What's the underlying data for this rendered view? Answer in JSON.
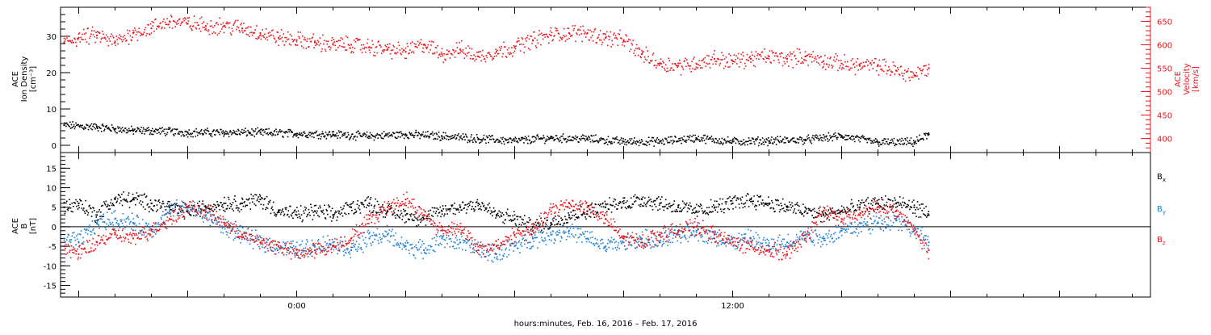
{
  "xlabel": "hours:minutes, Feb. 16, 2016 – Feb. 17, 2016",
  "x_tick_labels": [
    "0:00",
    "12:00"
  ],
  "chart_data": [
    {
      "type": "scatter",
      "panel": "top",
      "left_axis": {
        "label_lines": [
          "ACE",
          "Ion Density",
          "[cm⁻³]"
        ],
        "ylim": [
          -2,
          38
        ],
        "ticks": [
          0,
          10,
          20,
          30
        ],
        "color": "#000000"
      },
      "right_axis": {
        "label_lines": [
          "ACE",
          "Velocity",
          "[km/s]"
        ],
        "ylim": [
          370,
          680
        ],
        "ticks": [
          400,
          450,
          500,
          550,
          600,
          650
        ],
        "color": "#e8161b"
      },
      "xlim_hours": [
        -6.5,
        23.5
      ],
      "series": [
        {
          "axis": "left",
          "color": "#000000",
          "x": [
            -6.4,
            -5.5,
            -5.0,
            -4.5,
            -4.0,
            -3.0,
            -2.0,
            -1.0,
            0.0,
            1.0,
            2.0,
            3.0,
            4.0,
            5.0,
            6.0,
            7.0,
            8.0,
            9.0,
            10.0,
            11.0,
            12.0,
            13.0,
            14.0,
            15.0,
            16.0,
            17.0,
            17.4
          ],
          "y": [
            5.5,
            5.0,
            4.5,
            4.0,
            4.0,
            3.5,
            3.5,
            3.5,
            3.2,
            3.0,
            2.5,
            3.0,
            2.5,
            1.8,
            1.2,
            2.0,
            1.8,
            1.0,
            1.0,
            2.0,
            1.0,
            1.2,
            1.5,
            2.5,
            0.8,
            0.8,
            3.0
          ]
        },
        {
          "axis": "right",
          "color": "#e8161b",
          "x": [
            -6.4,
            -6.0,
            -5.5,
            -5.0,
            -4.5,
            -4.0,
            -3.5,
            -3.0,
            -2.5,
            -2.0,
            -1.5,
            -1.0,
            -0.5,
            0.0,
            0.5,
            1.0,
            1.5,
            2.0,
            2.5,
            3.0,
            3.5,
            4.0,
            4.5,
            5.0,
            5.5,
            6.0,
            6.5,
            7.0,
            7.5,
            8.0,
            8.5,
            9.0,
            9.5,
            10.0,
            10.5,
            11.0,
            11.5,
            12.0,
            12.5,
            13.0,
            13.5,
            14.0,
            14.5,
            15.0,
            15.5,
            16.0,
            16.5,
            17.0,
            17.4
          ],
          "y": [
            605,
            615,
            620,
            605,
            625,
            635,
            650,
            645,
            640,
            640,
            635,
            625,
            615,
            610,
            605,
            600,
            600,
            595,
            590,
            585,
            600,
            580,
            590,
            575,
            585,
            595,
            610,
            620,
            625,
            625,
            615,
            610,
            580,
            560,
            555,
            560,
            570,
            565,
            570,
            575,
            570,
            575,
            565,
            560,
            555,
            555,
            545,
            535,
            550
          ]
        }
      ]
    },
    {
      "type": "scatter",
      "panel": "bottom",
      "left_axis": {
        "label_lines": [
          "ACE",
          "B",
          "[nT]"
        ],
        "ylim": [
          -18,
          19
        ],
        "ticks": [
          -15,
          -10,
          -5,
          0,
          5,
          10,
          15
        ],
        "color": "#000000"
      },
      "xlim_hours": [
        -6.5,
        23.5
      ],
      "zero_line": true,
      "legend_placement": "right",
      "series": [
        {
          "name": "B",
          "subscript": "x",
          "color": "#000000",
          "x": [
            -6.4,
            -6.0,
            -5.5,
            -5.0,
            -4.5,
            -4.0,
            -3.5,
            -3.0,
            -2.5,
            -2.0,
            -1.5,
            -1.0,
            -0.5,
            0.0,
            0.5,
            1.0,
            1.5,
            2.0,
            2.5,
            3.0,
            3.5,
            4.0,
            4.5,
            5.0,
            5.5,
            6.0,
            6.5,
            7.0,
            7.5,
            8.0,
            8.5,
            9.0,
            9.5,
            10.0,
            10.5,
            11.0,
            11.5,
            12.0,
            12.5,
            13.0,
            13.5,
            14.0,
            14.5,
            15.0,
            15.5,
            16.0,
            16.5,
            17.0,
            17.4
          ],
          "y": [
            5,
            6,
            3,
            7,
            7,
            6,
            5,
            4,
            5,
            6,
            6,
            7,
            4,
            3,
            4,
            3,
            5,
            6,
            4,
            3,
            2,
            4,
            5,
            6,
            3,
            2,
            0,
            1,
            3,
            4,
            5,
            6,
            7,
            6,
            5,
            4,
            5,
            6,
            7,
            6,
            5,
            4,
            3,
            4,
            5,
            6,
            6,
            5,
            3
          ]
        },
        {
          "name": "B",
          "subscript": "y",
          "color": "#1b7fd6",
          "x": [
            -6.4,
            -6.0,
            -5.5,
            -5.0,
            -4.5,
            -4.0,
            -3.5,
            -3.0,
            -2.5,
            -2.0,
            -1.5,
            -1.0,
            -0.5,
            0.0,
            0.5,
            1.0,
            1.5,
            2.0,
            2.5,
            3.0,
            3.5,
            4.0,
            4.5,
            5.0,
            5.5,
            6.0,
            6.5,
            7.0,
            7.5,
            8.0,
            8.5,
            9.0,
            9.5,
            10.0,
            10.5,
            11.0,
            11.5,
            12.0,
            12.5,
            13.0,
            13.5,
            14.0,
            14.5,
            15.0,
            15.5,
            16.0,
            16.5,
            17.0,
            17.4
          ],
          "y": [
            -3,
            -4,
            1,
            2,
            1,
            -1,
            4,
            5,
            3,
            0,
            -2,
            -4,
            -5,
            -6,
            -5,
            -4,
            -6,
            -3,
            -2,
            -5,
            -6,
            -3,
            -4,
            -6,
            -7,
            -5,
            -3,
            -2,
            -1,
            -3,
            -5,
            -4,
            -3,
            -4,
            -2,
            -1,
            -3,
            -4,
            -3,
            -5,
            -4,
            -2,
            -3,
            -1,
            0,
            1,
            2,
            -1,
            -4
          ]
        },
        {
          "name": "B",
          "subscript": "z",
          "color": "#e8161b",
          "x": [
            -6.4,
            -6.0,
            -5.5,
            -5.0,
            -4.5,
            -4.0,
            -3.5,
            -3.0,
            -2.5,
            -2.0,
            -1.5,
            -1.0,
            -0.5,
            0.0,
            0.5,
            1.0,
            1.5,
            2.0,
            2.5,
            3.0,
            3.5,
            4.0,
            4.5,
            5.0,
            5.5,
            6.0,
            6.5,
            7.0,
            7.5,
            8.0,
            8.5,
            9.0,
            9.5,
            10.0,
            10.5,
            11.0,
            11.5,
            12.0,
            12.5,
            13.0,
            13.5,
            14.0,
            14.5,
            15.0,
            15.5,
            16.0,
            16.5,
            17.0,
            17.4
          ],
          "y": [
            -5,
            -7,
            -4,
            -2,
            -3,
            -1,
            2,
            5,
            4,
            1,
            -2,
            -4,
            -5,
            -7,
            -6,
            -5,
            -3,
            2,
            5,
            7,
            3,
            -1,
            0,
            -6,
            -5,
            -2,
            -1,
            4,
            6,
            5,
            2,
            -3,
            -4,
            -2,
            -1,
            0,
            -2,
            -4,
            -5,
            -6,
            -7,
            -3,
            4,
            2,
            3,
            5,
            4,
            -1,
            -6
          ]
        }
      ]
    }
  ]
}
